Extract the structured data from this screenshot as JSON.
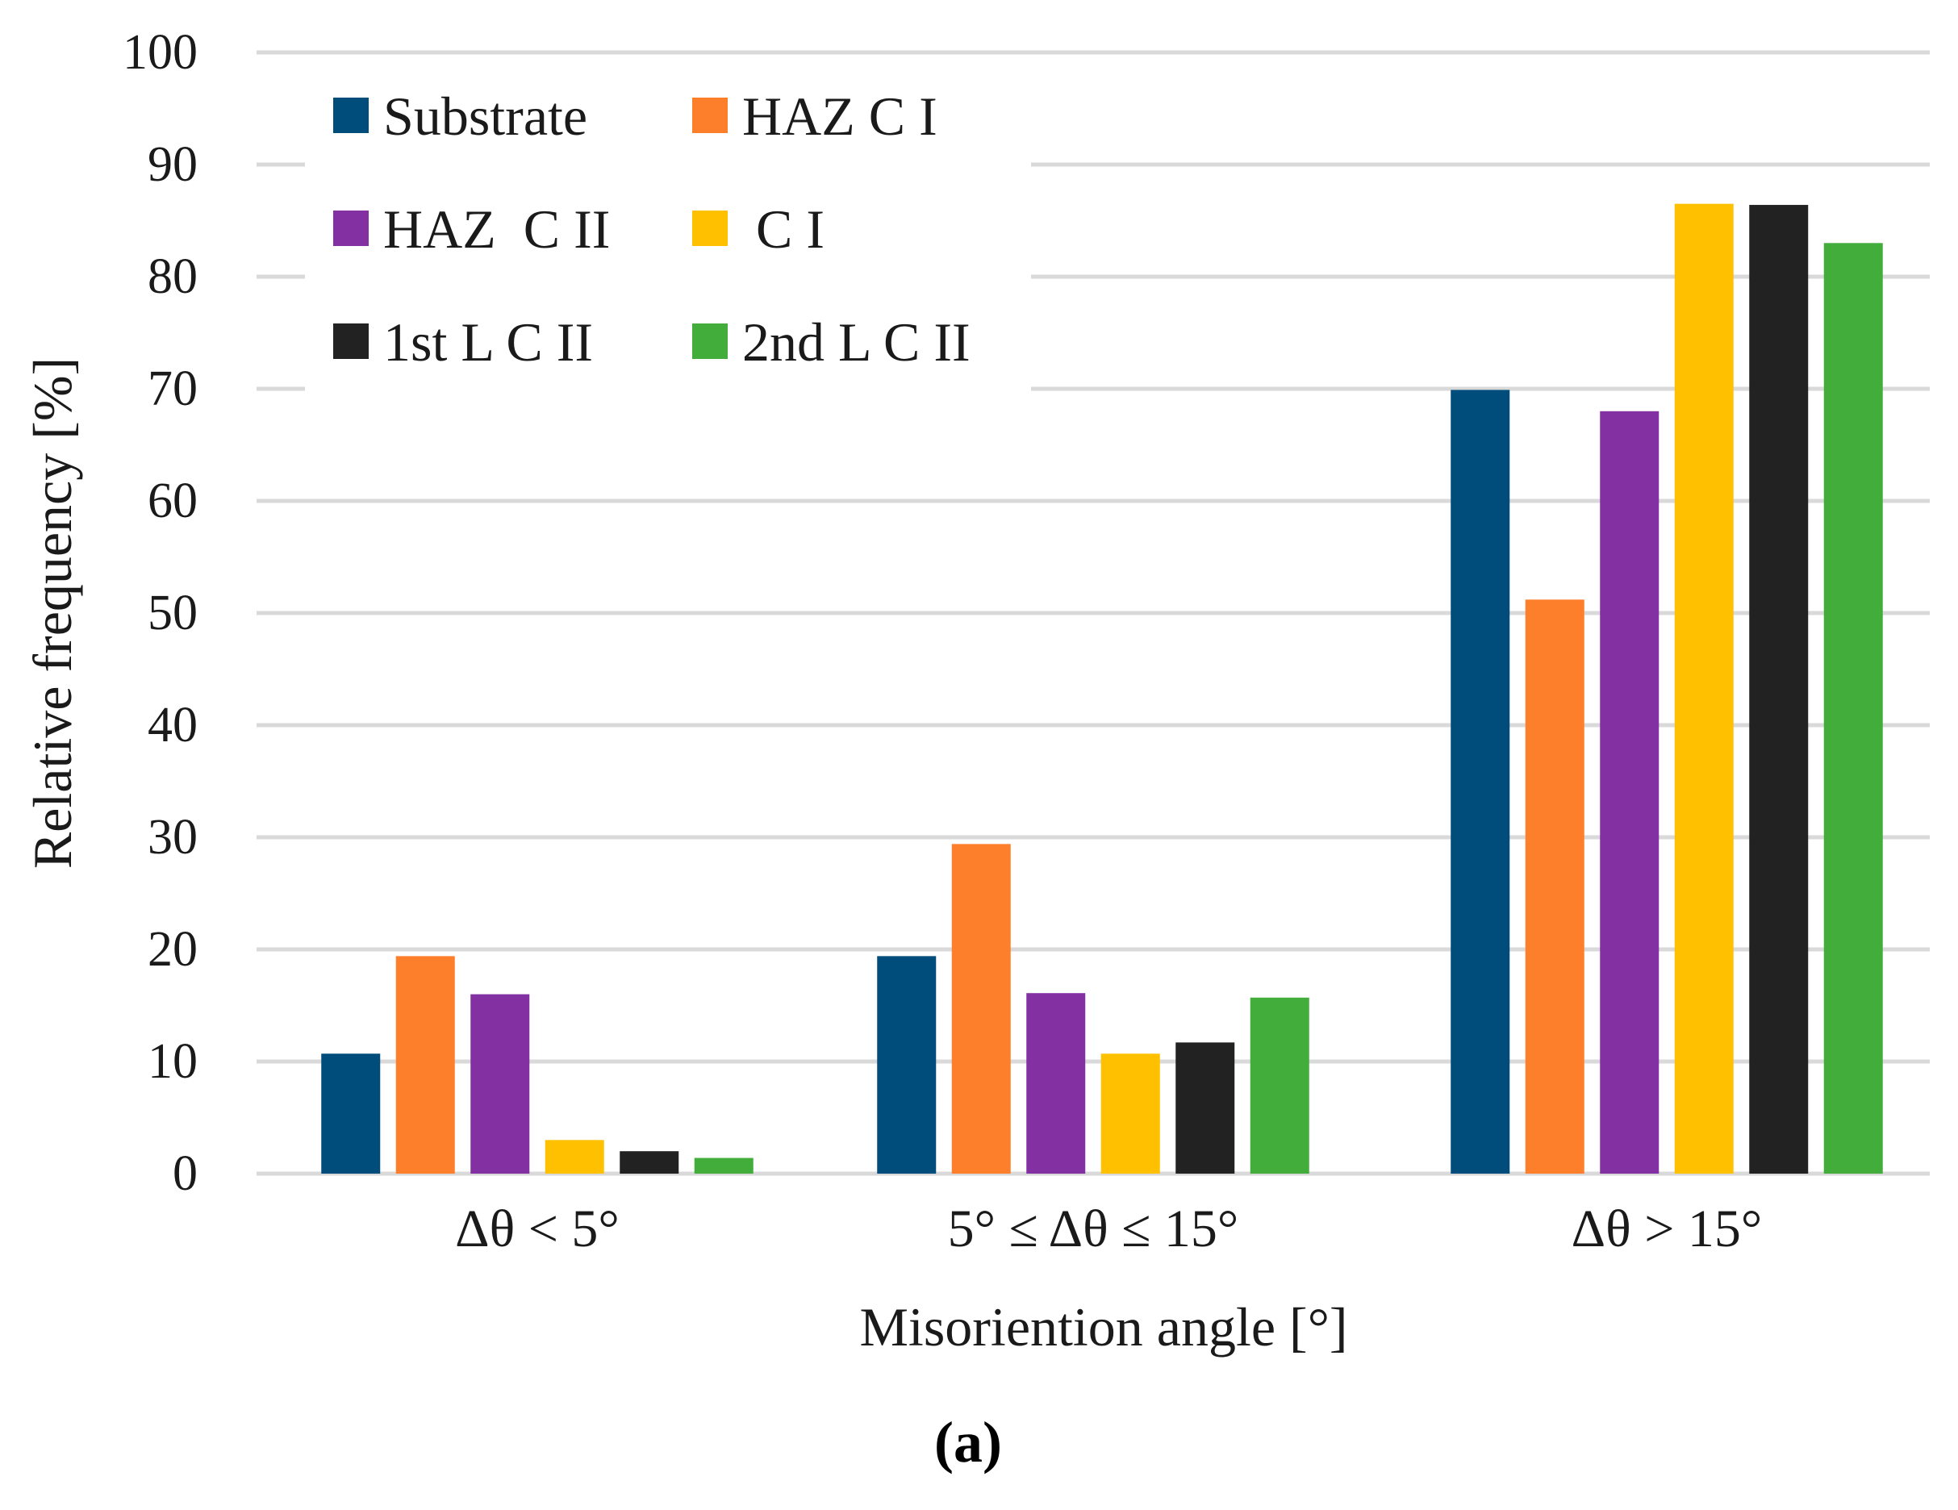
{
  "chart_data": {
    "type": "bar",
    "title": "",
    "xlabel": "Misoriention angle [°]",
    "ylabel": "Relative frequency [%]",
    "ylim": [
      0,
      100
    ],
    "yticks": [
      0,
      10,
      20,
      30,
      40,
      50,
      60,
      70,
      80,
      90,
      100
    ],
    "grid": true,
    "legend_position": "top-left",
    "categories": [
      "Δθ < 5°",
      "5° ≤ Δθ ≤ 15°",
      "Δθ > 15°"
    ],
    "series": [
      {
        "name": "Substrate",
        "color": "#004c7a",
        "values": [
          10.7,
          19.4,
          69.9
        ]
      },
      {
        "name": "HAZ C I",
        "color": "#fd7f2c",
        "values": [
          19.4,
          29.4,
          51.2
        ]
      },
      {
        "name": "HAZ  C II",
        "color": "#8230a2",
        "values": [
          16.0,
          16.1,
          68.0
        ]
      },
      {
        "name": " C I",
        "color": "#ffc000",
        "values": [
          3.0,
          10.7,
          86.5
        ]
      },
      {
        "name": "1st L C II",
        "color": "#222222",
        "values": [
          2.0,
          11.7,
          86.4
        ]
      },
      {
        "name": "2nd L C II",
        "color": "#43ad3b",
        "values": [
          1.4,
          15.7,
          83.0
        ]
      }
    ],
    "caption": "(a)"
  }
}
